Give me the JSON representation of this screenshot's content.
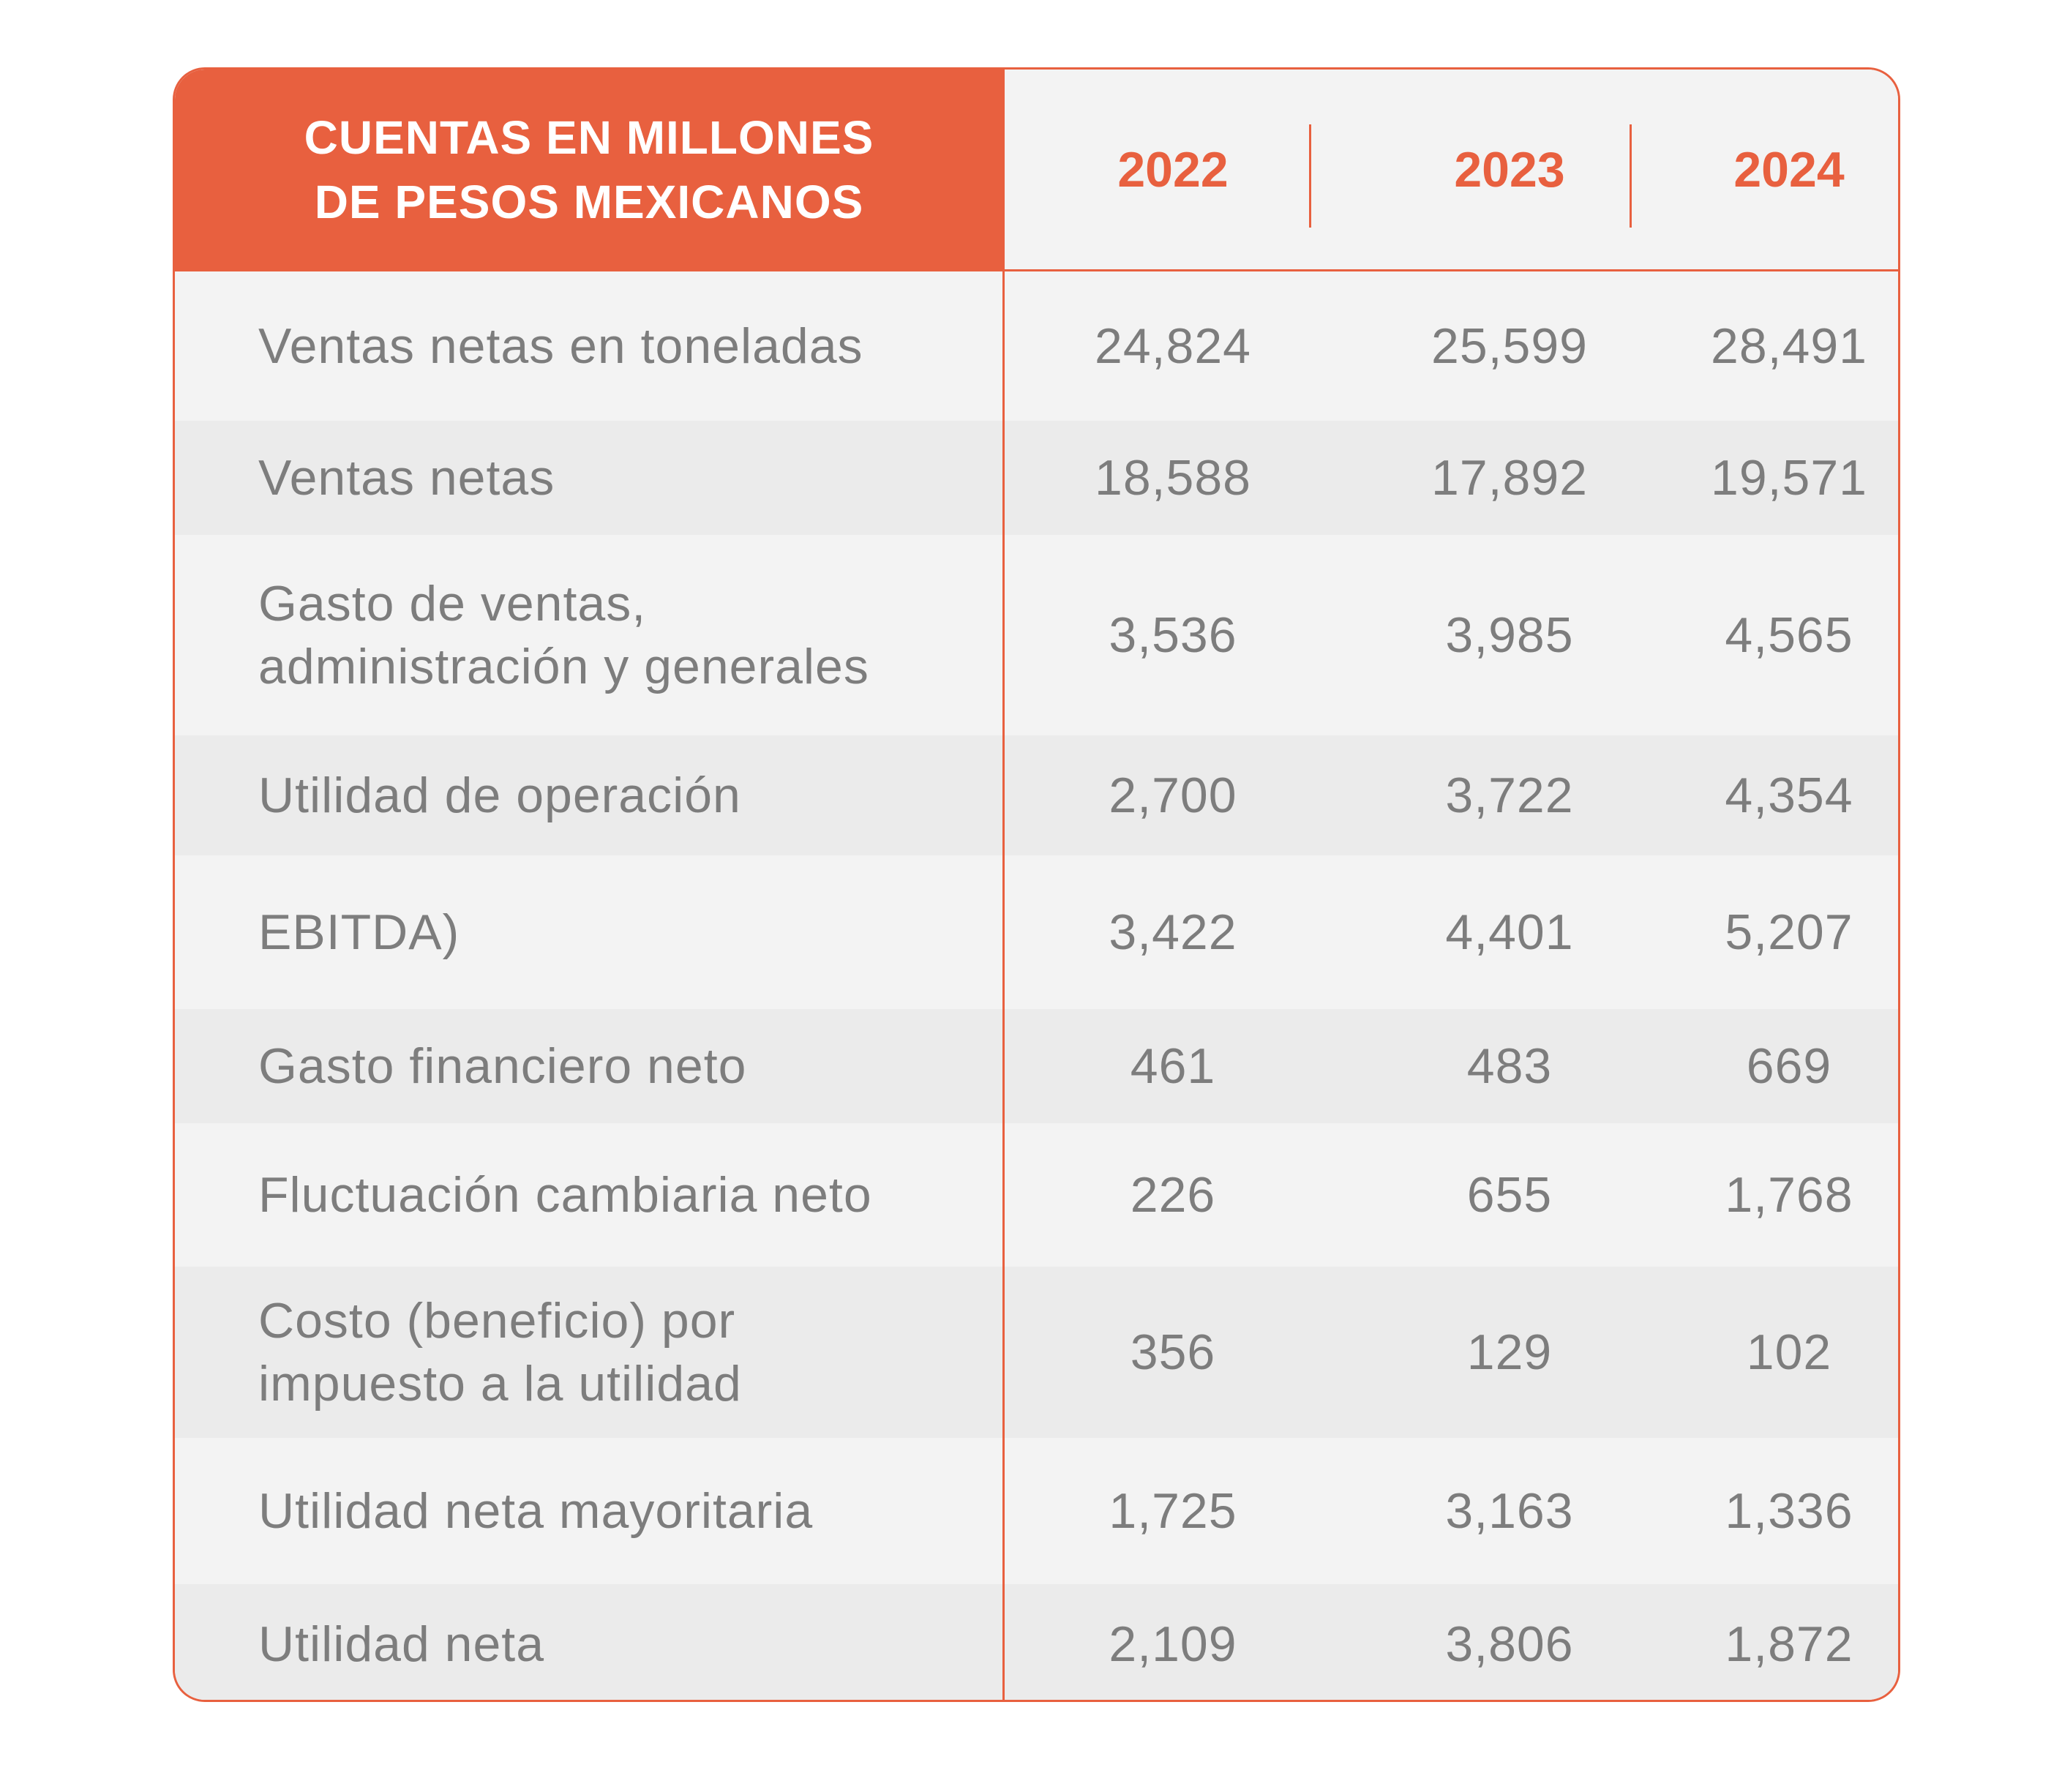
{
  "header": {
    "label_line1": "CUENTAS EN MILLONES",
    "label_line2": "DE PESOS MEXICANOS",
    "years": [
      "2022",
      "2023",
      "2024"
    ]
  },
  "rows": [
    {
      "label": "Ventas netas en toneladas",
      "values": [
        "24,824",
        "25,599",
        "28,491"
      ]
    },
    {
      "label": "Ventas netas",
      "values": [
        "18,588",
        "17,892",
        "19,571"
      ]
    },
    {
      "label": "Gasto de ventas, administración y generales",
      "values": [
        "3,536",
        "3,985",
        "4,565"
      ]
    },
    {
      "label": "Utilidad de operación",
      "values": [
        "2,700",
        "3,722",
        "4,354"
      ]
    },
    {
      "label": "EBITDA)",
      "values": [
        "3,422",
        "4,401",
        "5,207"
      ]
    },
    {
      "label": "Gasto financiero neto",
      "values": [
        "461",
        "483",
        "669"
      ]
    },
    {
      "label": "Fluctuación cambiaria neto",
      "values": [
        "226",
        "655",
        "1,768"
      ]
    },
    {
      "label": "Costo (beneficio) por impuesto a la utilidad",
      "values": [
        "356",
        "129",
        "102"
      ]
    },
    {
      "label": "Utilidad neta mayoritaria",
      "values": [
        "1,725",
        "3,163",
        "1,336"
      ]
    },
    {
      "label": "Utilidad neta",
      "values": [
        "2,109",
        "3,806",
        "1,872"
      ]
    }
  ],
  "colors": {
    "accent": "#e8603f",
    "text": "#7d7d7d",
    "row_light": "#f3f3f3",
    "row_dark": "#ebebeb"
  }
}
